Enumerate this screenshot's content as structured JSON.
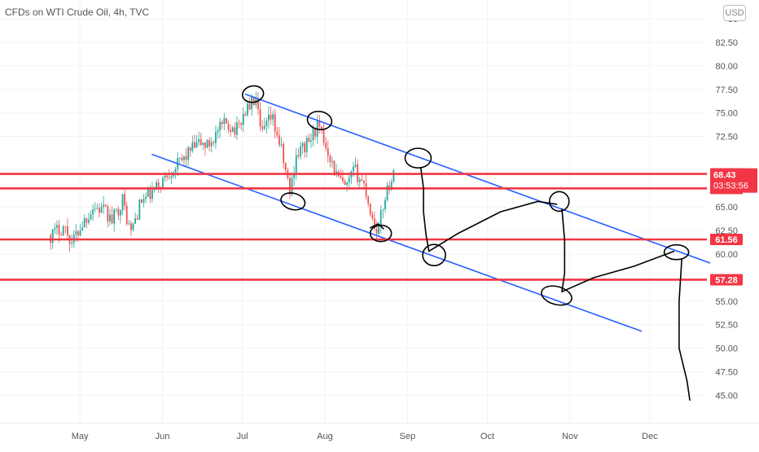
{
  "chart_data": {
    "type": "candlestick",
    "title": "CFDs on WTI Crude Oil, 4h, TVC",
    "currency": "USD",
    "ylim": [
      44.6,
      85.7
    ],
    "y_ticks": [
      {
        "value": 85,
        "label": "85"
      },
      {
        "value": 82.5,
        "label": "82.50"
      },
      {
        "value": 80,
        "label": "80.00"
      },
      {
        "value": 77.5,
        "label": "77.50"
      },
      {
        "value": 75,
        "label": "75.00"
      },
      {
        "value": 72.5,
        "label": "72.50"
      },
      {
        "value": 65,
        "label": "65.00"
      },
      {
        "value": 62.5,
        "label": "62.50"
      },
      {
        "value": 60,
        "label": "60.00"
      },
      {
        "value": 55,
        "label": "55.00"
      },
      {
        "value": 52.5,
        "label": "52.50"
      },
      {
        "value": 50,
        "label": "50.00"
      },
      {
        "value": 47.5,
        "label": "47.50"
      },
      {
        "value": 45,
        "label": "45.00"
      }
    ],
    "x_ticks": [
      "May",
      "Jun",
      "Jul",
      "Aug",
      "Sep",
      "Oct",
      "Nov",
      "Dec"
    ],
    "x_tick_dates": [
      "2021-05-01",
      "2021-06-01",
      "2021-07-01",
      "2021-08-01",
      "2021-09-01",
      "2021-10-01",
      "2021-11-01",
      "2021-12-01"
    ],
    "horizontal_levels": [
      {
        "value": 68.52,
        "label": "68.52"
      },
      {
        "value": 66.98,
        "label": "66.98"
      },
      {
        "value": 61.56,
        "label": "61.56"
      },
      {
        "value": 57.28,
        "label": "57.28"
      }
    ],
    "last_price": {
      "value": 68.43,
      "label": "68.43",
      "countdown": "03:53:56",
      "color": "#f23645"
    },
    "price_path": [
      {
        "date": "2021-04-20",
        "price": 62.0
      },
      {
        "date": "2021-04-25",
        "price": 63.0
      },
      {
        "date": "2021-04-28",
        "price": 61.2
      },
      {
        "date": "2021-05-02",
        "price": 63.3
      },
      {
        "date": "2021-05-06",
        "price": 65.0
      },
      {
        "date": "2021-05-10",
        "price": 64.6
      },
      {
        "date": "2021-05-13",
        "price": 63.5
      },
      {
        "date": "2021-05-17",
        "price": 65.8
      },
      {
        "date": "2021-05-20",
        "price": 62.2
      },
      {
        "date": "2021-05-24",
        "price": 65.6
      },
      {
        "date": "2021-05-28",
        "price": 66.4
      },
      {
        "date": "2021-06-01",
        "price": 67.8
      },
      {
        "date": "2021-06-04",
        "price": 68.9
      },
      {
        "date": "2021-06-08",
        "price": 69.8
      },
      {
        "date": "2021-06-11",
        "price": 70.9
      },
      {
        "date": "2021-06-15",
        "price": 71.8
      },
      {
        "date": "2021-06-18",
        "price": 71.5
      },
      {
        "date": "2021-06-22",
        "price": 73.1
      },
      {
        "date": "2021-06-25",
        "price": 73.9
      },
      {
        "date": "2021-06-29",
        "price": 73.2
      },
      {
        "date": "2021-07-02",
        "price": 75.2
      },
      {
        "date": "2021-07-06",
        "price": 76.5
      },
      {
        "date": "2021-07-08",
        "price": 72.5
      },
      {
        "date": "2021-07-12",
        "price": 74.6
      },
      {
        "date": "2021-07-15",
        "price": 71.8
      },
      {
        "date": "2021-07-19",
        "price": 66.4
      },
      {
        "date": "2021-07-21",
        "price": 70.5
      },
      {
        "date": "2021-07-26",
        "price": 71.9
      },
      {
        "date": "2021-07-29",
        "price": 73.6
      },
      {
        "date": "2021-08-02",
        "price": 71.2
      },
      {
        "date": "2021-08-05",
        "price": 68.5
      },
      {
        "date": "2021-08-09",
        "price": 66.8
      },
      {
        "date": "2021-08-12",
        "price": 69.0
      },
      {
        "date": "2021-08-16",
        "price": 67.2
      },
      {
        "date": "2021-08-19",
        "price": 63.5
      },
      {
        "date": "2021-08-21",
        "price": 62.4
      },
      {
        "date": "2021-08-24",
        "price": 66.8
      },
      {
        "date": "2021-08-27",
        "price": 68.4
      }
    ],
    "channel_lines": [
      {
        "x1": "2021-07-02",
        "y1": 77.0,
        "x2": "2021-12-31",
        "y2": 58.3,
        "color": "#2962ff"
      },
      {
        "x1": "2021-05-28",
        "y1": 70.6,
        "x2": "2021-11-28",
        "y2": 51.8,
        "color": "#2962ff"
      }
    ],
    "colors": {
      "up": "#26a69a",
      "down": "#ef5350",
      "level": "#f23645",
      "ink": "#000000"
    }
  }
}
